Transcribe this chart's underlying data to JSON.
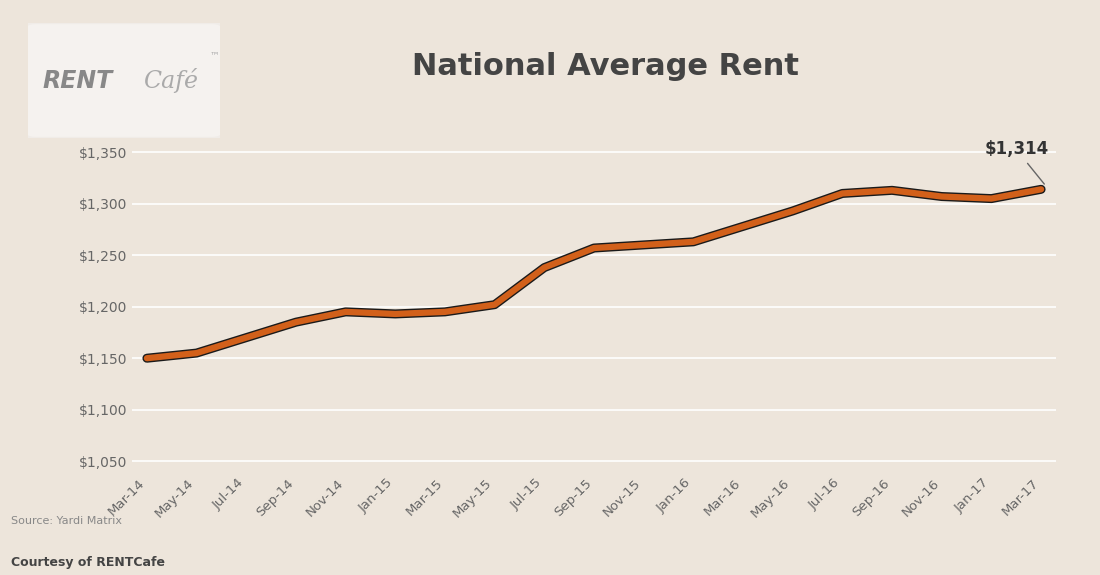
{
  "title": "National Average Rent",
  "background_color": "#ede5db",
  "plot_bg_color": "#e8ddd3",
  "line_color_orange": "#D2601A",
  "line_color_dark": "#1a1a1a",
  "ylim": [
    1040,
    1375
  ],
  "yticks": [
    1050,
    1100,
    1150,
    1200,
    1250,
    1300,
    1350
  ],
  "last_value_label": "$1,314",
  "source_text": "Source: Yardi Matrix",
  "courtesy_text": "Courtesy of RENTCafe",
  "title_fontsize": 22,
  "tick_fontsize": 10,
  "x_labels": [
    "Mar-14",
    "May-14",
    "Jul-14",
    "Sep-14",
    "Nov-14",
    "Jan-15",
    "Mar-15",
    "May-15",
    "Jul-15",
    "Sep-15",
    "Nov-15",
    "Jan-16",
    "Mar-16",
    "May-16",
    "Jul-16",
    "Sep-16",
    "Nov-16",
    "Jan-17",
    "Mar-17"
  ],
  "values": [
    1150,
    1155,
    1170,
    1185,
    1195,
    1193,
    1195,
    1202,
    1238,
    1257,
    1260,
    1263,
    1278,
    1293,
    1310,
    1313,
    1307,
    1305,
    1314
  ]
}
